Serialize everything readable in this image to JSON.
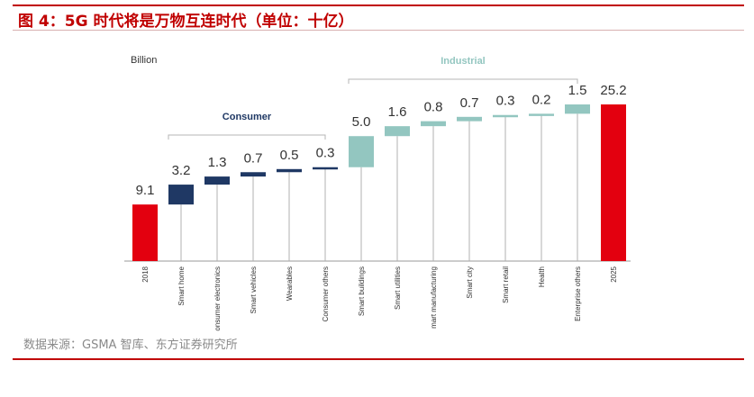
{
  "figure": {
    "title": "图 4：5G 时代将是万物互连时代（单位：十亿）",
    "source": "数据来源：GSMA 智库、东方证券研究所"
  },
  "colors": {
    "accent_red": "#c00000",
    "total": "#e3000f",
    "consumer": "#1f3864",
    "industrial": "#93c6c0",
    "connector": "#b0b0b0"
  },
  "chart_data": {
    "type": "bar",
    "subtype": "waterfall",
    "unit_label": "Billion",
    "groups": [
      {
        "name": "Consumer",
        "color": "#1f3864"
      },
      {
        "name": "Industrial",
        "color": "#93c6c0"
      }
    ],
    "categories": [
      "2018",
      "Smart home",
      "Consumer electronics",
      "Smart vehicles",
      "Wearables",
      "Consumer others",
      "Smart buildings",
      "Smart utilities",
      "Smart manufacturing",
      "Smart city",
      "Smart retail",
      "Health",
      "Enterprise others",
      "2025"
    ],
    "display_labels": [
      "2018",
      "Smart home",
      "onsumer electronics",
      "Smart vehicles",
      "Wearables",
      "Consumer others",
      "Smart buildings",
      "Smart utilities",
      "mart manufacturing",
      "Smart city",
      "Smart retail",
      "Health",
      "Enterprise others",
      "2025"
    ],
    "value_labels": [
      "9.1",
      "3.2",
      "1.3",
      "0.7",
      "0.5",
      "0.3",
      "5.0",
      "1.6",
      "0.8",
      "0.7",
      "0.3",
      "0.2",
      "1.5",
      "25.2"
    ],
    "values": [
      9.1,
      3.2,
      1.3,
      0.7,
      0.5,
      0.3,
      5.0,
      1.6,
      0.8,
      0.7,
      0.3,
      0.2,
      1.5,
      25.2
    ],
    "kinds": [
      "total",
      "consumer",
      "consumer",
      "consumer",
      "consumer",
      "consumer",
      "industrial",
      "industrial",
      "industrial",
      "industrial",
      "industrial",
      "industrial",
      "industrial",
      "total"
    ],
    "ylim": [
      0,
      25.2
    ],
    "legend": "none",
    "grid": false
  }
}
